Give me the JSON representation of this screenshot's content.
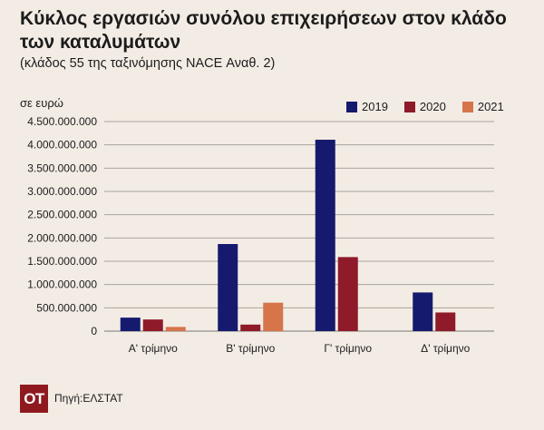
{
  "header": {
    "title": "Κύκλος εργασιών συνόλου επιχειρήσεων στον κλάδο των καταλυμάτων",
    "subtitle": "(κλάδος 55 της ταξινόμησης NACE Αναθ. 2)",
    "unit": "σε ευρώ"
  },
  "footer": {
    "logo_text": "ΟΤ",
    "source": "Πηγή:ΕΛΣΤΑΤ"
  },
  "colors": {
    "background": "#f3ece4",
    "grid": "#a8a39e",
    "s2019": "#151a6e",
    "s2020": "#8e1a2a",
    "s2021": "#d6744a",
    "logo": "#8e1a1f"
  },
  "chart_data": {
    "type": "bar",
    "categories": [
      "Α' τρίμηνο",
      "Β' τρίμηνο",
      "Γ' τρίμηνο",
      "Δ' τρίμηνο"
    ],
    "series": [
      {
        "name": "2019",
        "color": "#151a6e",
        "values": [
          290000000,
          1870000000,
          4110000000,
          830000000
        ]
      },
      {
        "name": "2020",
        "color": "#8e1a2a",
        "values": [
          250000000,
          140000000,
          1590000000,
          400000000
        ]
      },
      {
        "name": "2021",
        "color": "#d6744a",
        "values": [
          90000000,
          610000000,
          null,
          null
        ]
      }
    ],
    "yticks": [
      0,
      500000000,
      1000000000,
      1500000000,
      2000000000,
      2500000000,
      3000000000,
      3500000000,
      4000000000,
      4500000000
    ],
    "ytick_labels": [
      "0",
      "500.000.000",
      "1.000.000.000",
      "1.500.000.000",
      "2.000.000.000",
      "2.500.000.000",
      "3.000.000.000",
      "3.500.000.000",
      "4.000.000.000",
      "4.500.000.000"
    ],
    "ylim": [
      0,
      4500000000
    ],
    "title": "Κύκλος εργασιών συνόλου επιχειρήσεων στον κλάδο των καταλυμάτων",
    "ylabel": "σε ευρώ",
    "grid": true,
    "legend_position": "top-right"
  }
}
